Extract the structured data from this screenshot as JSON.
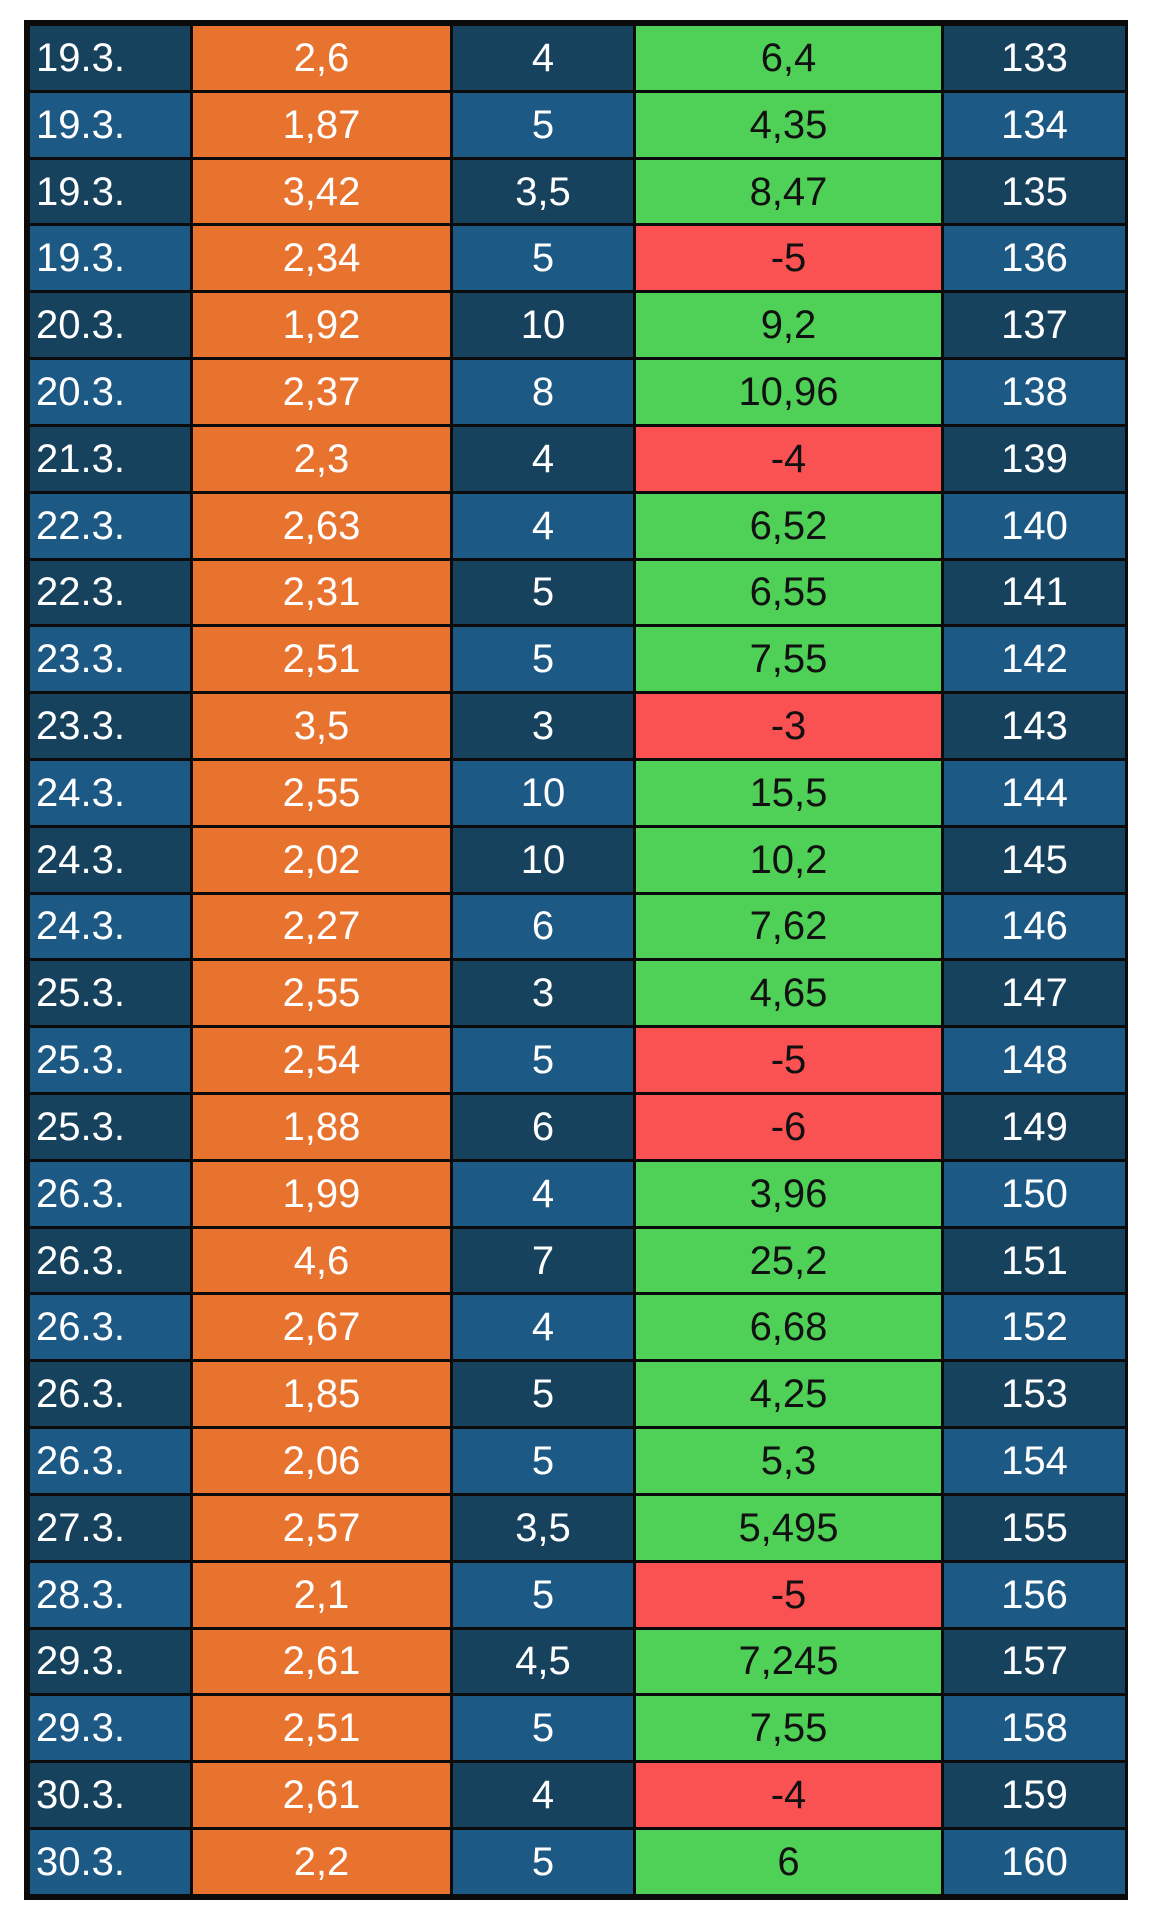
{
  "colors": {
    "odds_bg": "#e8732f",
    "win_bg": "#4fd056",
    "loss_bg": "#fa5252",
    "row_dark": "#17425e",
    "row_light": "#1d5985",
    "border": "#0b0b0b"
  },
  "rows": [
    {
      "date": "19.3.",
      "odds": "2,6",
      "stake": "4",
      "result": "6,4",
      "result_status": "win",
      "number": "133"
    },
    {
      "date": "19.3.",
      "odds": "1,87",
      "stake": "5",
      "result": "4,35",
      "result_status": "win",
      "number": "134"
    },
    {
      "date": "19.3.",
      "odds": "3,42",
      "stake": "3,5",
      "result": "8,47",
      "result_status": "win",
      "number": "135"
    },
    {
      "date": "19.3.",
      "odds": "2,34",
      "stake": "5",
      "result": "-5",
      "result_status": "loss",
      "number": "136"
    },
    {
      "date": "20.3.",
      "odds": "1,92",
      "stake": "10",
      "result": "9,2",
      "result_status": "win",
      "number": "137"
    },
    {
      "date": "20.3.",
      "odds": "2,37",
      "stake": "8",
      "result": "10,96",
      "result_status": "win",
      "number": "138"
    },
    {
      "date": "21.3.",
      "odds": "2,3",
      "stake": "4",
      "result": "-4",
      "result_status": "loss",
      "number": "139"
    },
    {
      "date": "22.3.",
      "odds": "2,63",
      "stake": "4",
      "result": "6,52",
      "result_status": "win",
      "number": "140"
    },
    {
      "date": "22.3.",
      "odds": "2,31",
      "stake": "5",
      "result": "6,55",
      "result_status": "win",
      "number": "141"
    },
    {
      "date": "23.3.",
      "odds": "2,51",
      "stake": "5",
      "result": "7,55",
      "result_status": "win",
      "number": "142"
    },
    {
      "date": "23.3.",
      "odds": "3,5",
      "stake": "3",
      "result": "-3",
      "result_status": "loss",
      "number": "143"
    },
    {
      "date": "24.3.",
      "odds": "2,55",
      "stake": "10",
      "result": "15,5",
      "result_status": "win",
      "number": "144"
    },
    {
      "date": "24.3.",
      "odds": "2,02",
      "stake": "10",
      "result": "10,2",
      "result_status": "win",
      "number": "145"
    },
    {
      "date": "24.3.",
      "odds": "2,27",
      "stake": "6",
      "result": "7,62",
      "result_status": "win",
      "number": "146"
    },
    {
      "date": "25.3.",
      "odds": "2,55",
      "stake": "3",
      "result": "4,65",
      "result_status": "win",
      "number": "147"
    },
    {
      "date": "25.3.",
      "odds": "2,54",
      "stake": "5",
      "result": "-5",
      "result_status": "loss",
      "number": "148"
    },
    {
      "date": "25.3.",
      "odds": "1,88",
      "stake": "6",
      "result": "-6",
      "result_status": "loss",
      "number": "149"
    },
    {
      "date": "26.3.",
      "odds": "1,99",
      "stake": "4",
      "result": "3,96",
      "result_status": "win",
      "number": "150"
    },
    {
      "date": "26.3.",
      "odds": "4,6",
      "stake": "7",
      "result": "25,2",
      "result_status": "win",
      "number": "151"
    },
    {
      "date": "26.3.",
      "odds": "2,67",
      "stake": "4",
      "result": "6,68",
      "result_status": "win",
      "number": "152"
    },
    {
      "date": "26.3.",
      "odds": "1,85",
      "stake": "5",
      "result": "4,25",
      "result_status": "win",
      "number": "153"
    },
    {
      "date": "26.3.",
      "odds": "2,06",
      "stake": "5",
      "result": "5,3",
      "result_status": "win",
      "number": "154"
    },
    {
      "date": "27.3.",
      "odds": "2,57",
      "stake": "3,5",
      "result": "5,495",
      "result_status": "win",
      "number": "155"
    },
    {
      "date": "28.3.",
      "odds": "2,1",
      "stake": "5",
      "result": "-5",
      "result_status": "loss",
      "number": "156"
    },
    {
      "date": "29.3.",
      "odds": "2,61",
      "stake": "4,5",
      "result": "7,245",
      "result_status": "win",
      "number": "157"
    },
    {
      "date": "29.3.",
      "odds": "2,51",
      "stake": "5",
      "result": "7,55",
      "result_status": "win",
      "number": "158"
    },
    {
      "date": "30.3.",
      "odds": "2,61",
      "stake": "4",
      "result": "-4",
      "result_status": "loss",
      "number": "159"
    },
    {
      "date": "30.3.",
      "odds": "2,2",
      "stake": "5",
      "result": "6",
      "result_status": "win",
      "number": "160"
    }
  ]
}
